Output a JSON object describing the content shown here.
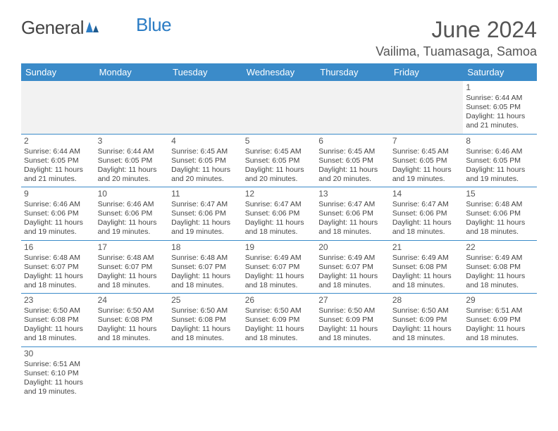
{
  "logo": {
    "general": "General",
    "blue": "Blue"
  },
  "title": "June 2024",
  "location": "Vailima, Tuamasaga, Samoa",
  "colors": {
    "header_bg": "#3b8bc9",
    "header_text": "#ffffff",
    "cell_border": "#3b8bc9",
    "text": "#444444",
    "title_text": "#555555",
    "empty_bg": "#f2f2f2"
  },
  "weekdays": [
    "Sunday",
    "Monday",
    "Tuesday",
    "Wednesday",
    "Thursday",
    "Friday",
    "Saturday"
  ],
  "weeks": [
    [
      null,
      null,
      null,
      null,
      null,
      null,
      {
        "n": "1",
        "sr": "Sunrise: 6:44 AM",
        "ss": "Sunset: 6:05 PM",
        "dl": "Daylight: 11 hours and 21 minutes."
      }
    ],
    [
      {
        "n": "2",
        "sr": "Sunrise: 6:44 AM",
        "ss": "Sunset: 6:05 PM",
        "dl": "Daylight: 11 hours and 21 minutes."
      },
      {
        "n": "3",
        "sr": "Sunrise: 6:44 AM",
        "ss": "Sunset: 6:05 PM",
        "dl": "Daylight: 11 hours and 20 minutes."
      },
      {
        "n": "4",
        "sr": "Sunrise: 6:45 AM",
        "ss": "Sunset: 6:05 PM",
        "dl": "Daylight: 11 hours and 20 minutes."
      },
      {
        "n": "5",
        "sr": "Sunrise: 6:45 AM",
        "ss": "Sunset: 6:05 PM",
        "dl": "Daylight: 11 hours and 20 minutes."
      },
      {
        "n": "6",
        "sr": "Sunrise: 6:45 AM",
        "ss": "Sunset: 6:05 PM",
        "dl": "Daylight: 11 hours and 20 minutes."
      },
      {
        "n": "7",
        "sr": "Sunrise: 6:45 AM",
        "ss": "Sunset: 6:05 PM",
        "dl": "Daylight: 11 hours and 19 minutes."
      },
      {
        "n": "8",
        "sr": "Sunrise: 6:46 AM",
        "ss": "Sunset: 6:05 PM",
        "dl": "Daylight: 11 hours and 19 minutes."
      }
    ],
    [
      {
        "n": "9",
        "sr": "Sunrise: 6:46 AM",
        "ss": "Sunset: 6:06 PM",
        "dl": "Daylight: 11 hours and 19 minutes."
      },
      {
        "n": "10",
        "sr": "Sunrise: 6:46 AM",
        "ss": "Sunset: 6:06 PM",
        "dl": "Daylight: 11 hours and 19 minutes."
      },
      {
        "n": "11",
        "sr": "Sunrise: 6:47 AM",
        "ss": "Sunset: 6:06 PM",
        "dl": "Daylight: 11 hours and 19 minutes."
      },
      {
        "n": "12",
        "sr": "Sunrise: 6:47 AM",
        "ss": "Sunset: 6:06 PM",
        "dl": "Daylight: 11 hours and 18 minutes."
      },
      {
        "n": "13",
        "sr": "Sunrise: 6:47 AM",
        "ss": "Sunset: 6:06 PM",
        "dl": "Daylight: 11 hours and 18 minutes."
      },
      {
        "n": "14",
        "sr": "Sunrise: 6:47 AM",
        "ss": "Sunset: 6:06 PM",
        "dl": "Daylight: 11 hours and 18 minutes."
      },
      {
        "n": "15",
        "sr": "Sunrise: 6:48 AM",
        "ss": "Sunset: 6:06 PM",
        "dl": "Daylight: 11 hours and 18 minutes."
      }
    ],
    [
      {
        "n": "16",
        "sr": "Sunrise: 6:48 AM",
        "ss": "Sunset: 6:07 PM",
        "dl": "Daylight: 11 hours and 18 minutes."
      },
      {
        "n": "17",
        "sr": "Sunrise: 6:48 AM",
        "ss": "Sunset: 6:07 PM",
        "dl": "Daylight: 11 hours and 18 minutes."
      },
      {
        "n": "18",
        "sr": "Sunrise: 6:48 AM",
        "ss": "Sunset: 6:07 PM",
        "dl": "Daylight: 11 hours and 18 minutes."
      },
      {
        "n": "19",
        "sr": "Sunrise: 6:49 AM",
        "ss": "Sunset: 6:07 PM",
        "dl": "Daylight: 11 hours and 18 minutes."
      },
      {
        "n": "20",
        "sr": "Sunrise: 6:49 AM",
        "ss": "Sunset: 6:07 PM",
        "dl": "Daylight: 11 hours and 18 minutes."
      },
      {
        "n": "21",
        "sr": "Sunrise: 6:49 AM",
        "ss": "Sunset: 6:08 PM",
        "dl": "Daylight: 11 hours and 18 minutes."
      },
      {
        "n": "22",
        "sr": "Sunrise: 6:49 AM",
        "ss": "Sunset: 6:08 PM",
        "dl": "Daylight: 11 hours and 18 minutes."
      }
    ],
    [
      {
        "n": "23",
        "sr": "Sunrise: 6:50 AM",
        "ss": "Sunset: 6:08 PM",
        "dl": "Daylight: 11 hours and 18 minutes."
      },
      {
        "n": "24",
        "sr": "Sunrise: 6:50 AM",
        "ss": "Sunset: 6:08 PM",
        "dl": "Daylight: 11 hours and 18 minutes."
      },
      {
        "n": "25",
        "sr": "Sunrise: 6:50 AM",
        "ss": "Sunset: 6:08 PM",
        "dl": "Daylight: 11 hours and 18 minutes."
      },
      {
        "n": "26",
        "sr": "Sunrise: 6:50 AM",
        "ss": "Sunset: 6:09 PM",
        "dl": "Daylight: 11 hours and 18 minutes."
      },
      {
        "n": "27",
        "sr": "Sunrise: 6:50 AM",
        "ss": "Sunset: 6:09 PM",
        "dl": "Daylight: 11 hours and 18 minutes."
      },
      {
        "n": "28",
        "sr": "Sunrise: 6:50 AM",
        "ss": "Sunset: 6:09 PM",
        "dl": "Daylight: 11 hours and 18 minutes."
      },
      {
        "n": "29",
        "sr": "Sunrise: 6:51 AM",
        "ss": "Sunset: 6:09 PM",
        "dl": "Daylight: 11 hours and 18 minutes."
      }
    ],
    [
      {
        "n": "30",
        "sr": "Sunrise: 6:51 AM",
        "ss": "Sunset: 6:10 PM",
        "dl": "Daylight: 11 hours and 19 minutes."
      },
      null,
      null,
      null,
      null,
      null,
      null
    ]
  ]
}
